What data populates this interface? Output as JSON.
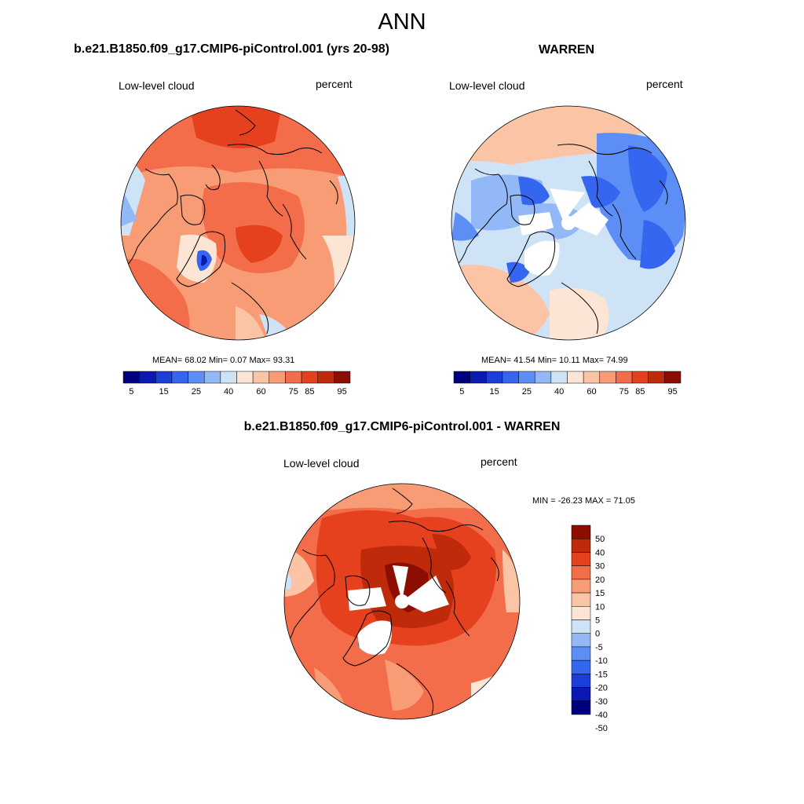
{
  "title": "ANN",
  "colors": {
    "field_scale": [
      "#00007f",
      "#0a1ab0",
      "#1c3fd9",
      "#3466f0",
      "#5c8ef5",
      "#93b8f7",
      "#cfe3f7",
      "#fde5d5",
      "#fbc4a5",
      "#f89c76",
      "#f36d4b",
      "#e5411f",
      "#bf2a0a",
      "#8c0e02"
    ],
    "diff_scale": [
      "#00007f",
      "#0a1ab0",
      "#1c3fd9",
      "#3466f0",
      "#5c8ef5",
      "#93b8f7",
      "#cfe3f7",
      "#fde5d5",
      "#fbc4a5",
      "#f89c76",
      "#f36d4b",
      "#e5411f",
      "#bf2a0a",
      "#8c0e02"
    ],
    "missing": "#ffffff"
  },
  "panels": {
    "model": {
      "title": "b.e21.B1850.f09_g17.CMIP6-piControl.001 (yrs 20-98)",
      "left_label": "Low-level cloud",
      "right_label": "percent",
      "stats": "MEAN=  68.02  Min=   0.07  Max=  93.31",
      "mean": 68.02,
      "min": 0.07,
      "max": 93.31,
      "colorbar_labels": [
        "5",
        "15",
        "25",
        "40",
        "60",
        "75",
        "85",
        "95"
      ]
    },
    "obs": {
      "title": "WARREN",
      "left_label": "Low-level cloud",
      "right_label": "percent",
      "stats": "MEAN=  41.54  Min=  10.11  Max=  74.99",
      "mean": 41.54,
      "min": 10.11,
      "max": 74.99,
      "colorbar_labels": [
        "5",
        "15",
        "25",
        "40",
        "60",
        "75",
        "85",
        "95"
      ]
    },
    "diff": {
      "title": "b.e21.B1850.f09_g17.CMIP6-piControl.001 - WARREN",
      "left_label": "Low-level cloud",
      "right_label": "percent",
      "stats": "MIN = -26.23 MAX =  71.05",
      "min": -26.23,
      "max": 71.05,
      "colorbar_labels": [
        "50",
        "40",
        "30",
        "20",
        "15",
        "10",
        "5",
        "0",
        "-5",
        "-10",
        "-15",
        "-20",
        "-30",
        "-40",
        "-50"
      ]
    }
  }
}
